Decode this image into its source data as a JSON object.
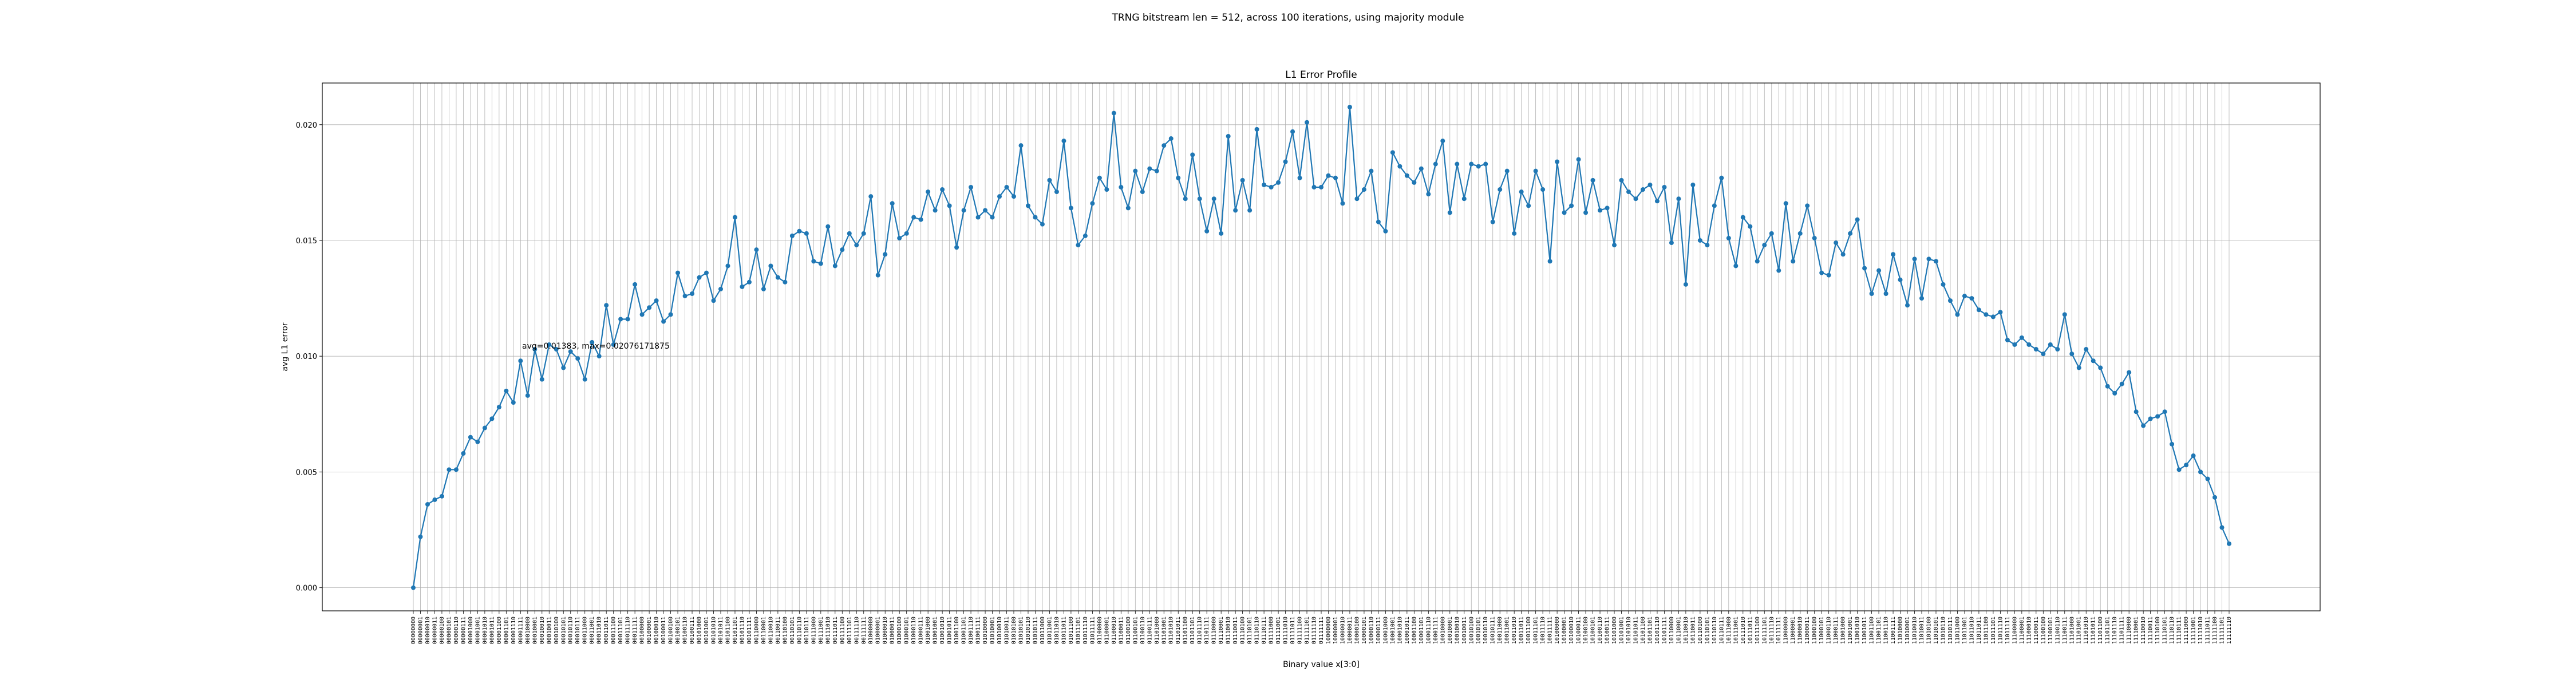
{
  "figure": {
    "suptitle": "TRNG bitstream len = 512, across 100 iterations, using majority module"
  },
  "chart_data": {
    "type": "line",
    "title": "L1 Error Profile",
    "xlabel": "Binary value x[3:0]",
    "ylabel": "avg L1 error",
    "ylim": [
      -0.001,
      0.0218
    ],
    "yticks": [
      "0.000",
      "0.005",
      "0.010",
      "0.015",
      "0.020"
    ],
    "grid": true,
    "line_color": "#1f77b4",
    "annotation": "avg=0.01383, max=0.02076171875",
    "x_bits": 8,
    "values": [
      0.0,
      0.0022,
      0.0036,
      0.0038,
      0.00395,
      0.0051,
      0.0051,
      0.0058,
      0.0065,
      0.0063,
      0.0069,
      0.0073,
      0.0078,
      0.0085,
      0.008,
      0.0098,
      0.0083,
      0.0103,
      0.009,
      0.0105,
      0.0103,
      0.0095,
      0.0102,
      0.0099,
      0.009,
      0.0106,
      0.01,
      0.0122,
      0.0105,
      0.0116,
      0.0116,
      0.0131,
      0.0118,
      0.0121,
      0.0124,
      0.0115,
      0.0118,
      0.0136,
      0.0126,
      0.0127,
      0.0134,
      0.0136,
      0.0124,
      0.0129,
      0.0139,
      0.016,
      0.013,
      0.0132,
      0.0146,
      0.0129,
      0.0139,
      0.0134,
      0.0132,
      0.0152,
      0.0154,
      0.0153,
      0.0141,
      0.014,
      0.0156,
      0.0139,
      0.0146,
      0.0153,
      0.0148,
      0.0153,
      0.0169,
      0.0135,
      0.0144,
      0.0166,
      0.0151,
      0.0153,
      0.016,
      0.0159,
      0.0171,
      0.0163,
      0.0172,
      0.0165,
      0.0147,
      0.0163,
      0.0173,
      0.016,
      0.0163,
      0.016,
      0.0169,
      0.0173,
      0.0169,
      0.0191,
      0.0165,
      0.016,
      0.0157,
      0.0176,
      0.0171,
      0.0193,
      0.0164,
      0.0148,
      0.0152,
      0.0166,
      0.0177,
      0.0172,
      0.0205,
      0.0173,
      0.0164,
      0.018,
      0.0171,
      0.0181,
      0.018,
      0.0191,
      0.0194,
      0.0177,
      0.0168,
      0.0187,
      0.0168,
      0.0154,
      0.0168,
      0.0153,
      0.0195,
      0.0163,
      0.0176,
      0.0163,
      0.0198,
      0.0174,
      0.0173,
      0.0175,
      0.0184,
      0.0197,
      0.0177,
      0.0201,
      0.0173,
      0.0173,
      0.0178,
      0.0177,
      0.0166,
      0.02076,
      0.0168,
      0.0172,
      0.018,
      0.0158,
      0.0154,
      0.0188,
      0.0182,
      0.0178,
      0.0175,
      0.0181,
      0.017,
      0.0183,
      0.0193,
      0.0162,
      0.0183,
      0.0168,
      0.0183,
      0.0182,
      0.0183,
      0.0158,
      0.0172,
      0.018,
      0.0153,
      0.0171,
      0.0165,
      0.018,
      0.0172,
      0.0141,
      0.0184,
      0.0162,
      0.0165,
      0.0185,
      0.0162,
      0.0176,
      0.0163,
      0.0164,
      0.0148,
      0.0176,
      0.0171,
      0.0168,
      0.0172,
      0.0174,
      0.0167,
      0.0173,
      0.0149,
      0.0168,
      0.0131,
      0.0174,
      0.015,
      0.0148,
      0.0165,
      0.0177,
      0.0151,
      0.0139,
      0.016,
      0.0156,
      0.0141,
      0.0148,
      0.0153,
      0.0137,
      0.0166,
      0.0141,
      0.0153,
      0.0165,
      0.0151,
      0.0136,
      0.0135,
      0.0149,
      0.0144,
      0.0153,
      0.0159,
      0.0138,
      0.0127,
      0.0137,
      0.0127,
      0.0144,
      0.0133,
      0.0122,
      0.0142,
      0.0125,
      0.0142,
      0.0141,
      0.0131,
      0.0124,
      0.0118,
      0.0126,
      0.0125,
      0.012,
      0.0118,
      0.0117,
      0.0119,
      0.0107,
      0.0105,
      0.0108,
      0.0105,
      0.0103,
      0.0101,
      0.0105,
      0.0103,
      0.0118,
      0.0101,
      0.0095,
      0.0103,
      0.0098,
      0.0095,
      0.0087,
      0.0084,
      0.0088,
      0.0093,
      0.0076,
      0.007,
      0.0073,
      0.0074,
      0.0076,
      0.0062,
      0.0051,
      0.0053,
      0.0057,
      0.005,
      0.0047,
      0.0039,
      0.0026,
      0.0019
    ]
  }
}
